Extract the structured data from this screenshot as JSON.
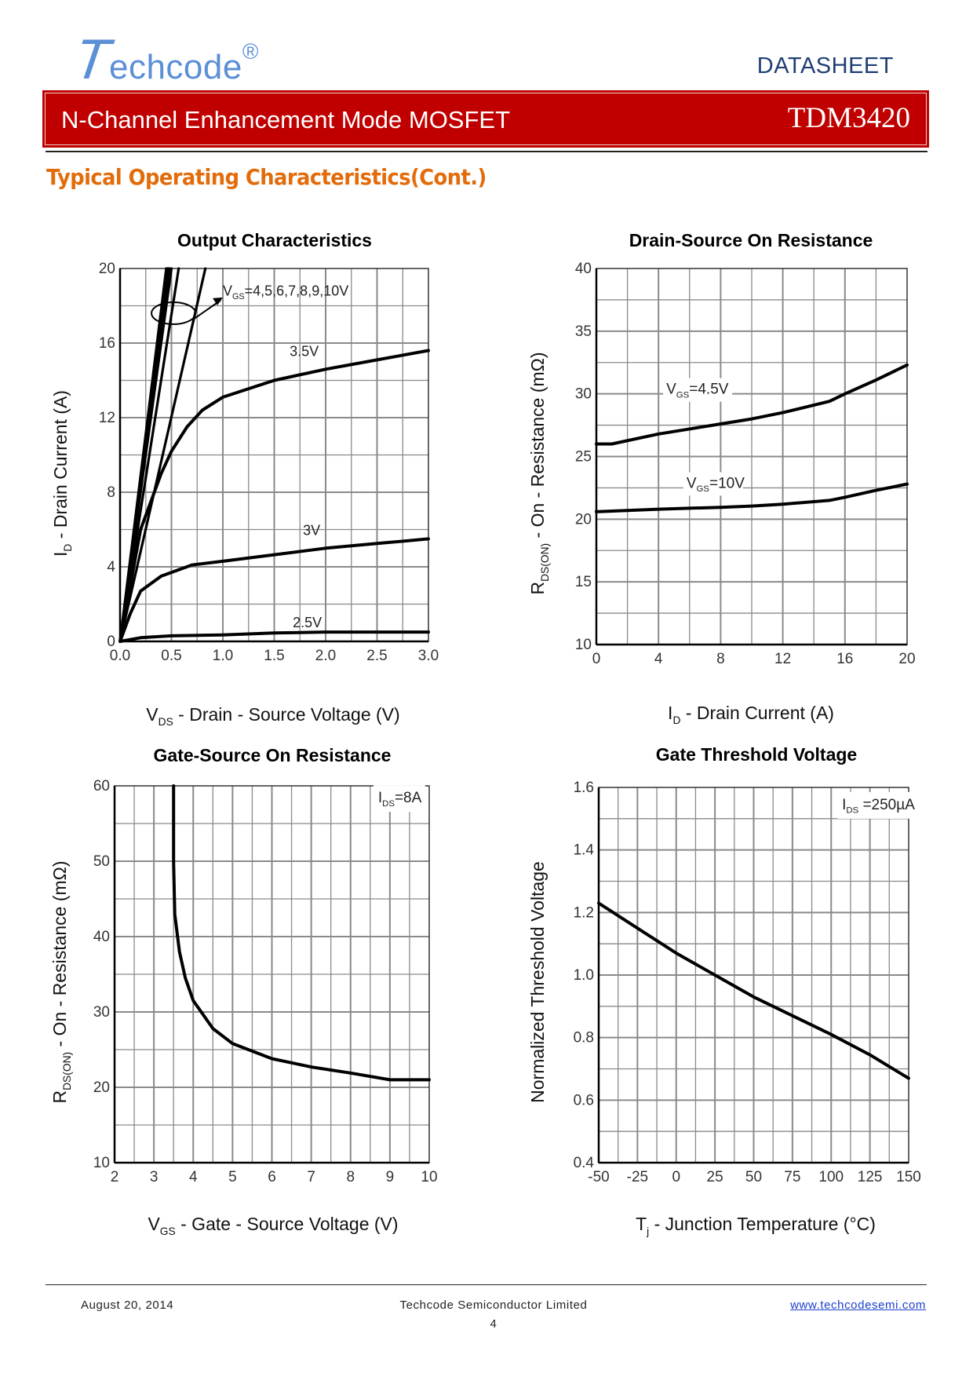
{
  "header": {
    "logo_initial": "T",
    "logo_rest": "echcode",
    "logo_mark": "®",
    "doc_type": "DATASHEET",
    "banner_title": "N-Channel Enhancement Mode MOSFET",
    "part_number": "TDM3420",
    "banner_color": "#c00000",
    "logo_color": "#5b8fd6"
  },
  "section_title": "Typical Operating Characteristics(Cont.)",
  "section_title_color": "#e36c0a",
  "chart_data": [
    {
      "type": "line",
      "title": "Output Characteristics",
      "xlabel": {
        "pre": "V",
        "sub": "DS",
        "post": " - Drain - Source Voltage (V)"
      },
      "ylabel": {
        "pre": "I",
        "sub": "D",
        "post": " - Drain Current (A)"
      },
      "xlim": [
        0,
        3
      ],
      "ylim": [
        0,
        20
      ],
      "xticks": [
        "0.0",
        "0.5",
        "1.0",
        "1.5",
        "2.0",
        "2.5",
        "3.0"
      ],
      "yticks": [
        "0",
        "4",
        "8",
        "12",
        "16",
        "20"
      ],
      "grid": true,
      "series": [
        {
          "points": [
            [
              0,
              0
            ],
            [
              0.83,
              20
            ]
          ]
        },
        {
          "points": [
            [
              0,
              0
            ],
            [
              0.57,
              20
            ]
          ]
        },
        {
          "points": [
            [
              0,
              0
            ],
            [
              0.5,
              20
            ]
          ]
        },
        {
          "points": [
            [
              0,
              0
            ],
            [
              0.48,
              20
            ]
          ]
        },
        {
          "points": [
            [
              0,
              0
            ],
            [
              0.47,
              20
            ]
          ]
        },
        {
          "points": [
            [
              0,
              0
            ],
            [
              0.46,
              20
            ]
          ]
        },
        {
          "points": [
            [
              0,
              0
            ],
            [
              0.45,
              20
            ]
          ]
        },
        {
          "name": "3.5V",
          "points": [
            [
              0,
              0
            ],
            [
              0.2,
              6
            ],
            [
              0.4,
              9
            ],
            [
              0.5,
              10.2
            ],
            [
              0.65,
              11.5
            ],
            [
              0.8,
              12.4
            ],
            [
              1,
              13.1
            ],
            [
              1.5,
              14
            ],
            [
              2,
              14.6
            ],
            [
              2.5,
              15.1
            ],
            [
              3,
              15.6
            ]
          ]
        },
        {
          "name": "3V",
          "points": [
            [
              0,
              0
            ],
            [
              0.1,
              1.5
            ],
            [
              0.2,
              2.7
            ],
            [
              0.4,
              3.5
            ],
            [
              0.7,
              4.1
            ],
            [
              1,
              4.3
            ],
            [
              1.5,
              4.65
            ],
            [
              2,
              5
            ],
            [
              2.5,
              5.25
            ],
            [
              3,
              5.5
            ]
          ]
        },
        {
          "name": "2.5V",
          "points": [
            [
              0,
              0
            ],
            [
              0.2,
              0.2
            ],
            [
              0.5,
              0.3
            ],
            [
              1,
              0.35
            ],
            [
              1.5,
              0.45
            ],
            [
              2,
              0.5
            ],
            [
              3,
              0.5
            ]
          ]
        }
      ],
      "annotations": [
        {
          "pre": "V",
          "sub": "GS",
          "post": "=4,5,6,7,8,9,10V"
        }
      ]
    },
    {
      "type": "line",
      "title": "Drain-Source On Resistance",
      "xlabel": {
        "pre": "I",
        "sub": "D",
        "post": " - Drain Current (A)"
      },
      "ylabel": {
        "pre": "R",
        "sub": "DS(ON)",
        "post": " - On - Resistance (mΩ)"
      },
      "xlim": [
        0,
        20
      ],
      "ylim": [
        10,
        40
      ],
      "xticks": [
        "0",
        "4",
        "8",
        "12",
        "16",
        "20"
      ],
      "yticks": [
        "10",
        "15",
        "20",
        "25",
        "30",
        "35",
        "40"
      ],
      "grid": true,
      "series": [
        {
          "name": {
            "pre": "V",
            "sub": "GS",
            "post": "=4.5V"
          },
          "points": [
            [
              0,
              26
            ],
            [
              1,
              26
            ],
            [
              4,
              26.8
            ],
            [
              8,
              27.6
            ],
            [
              10,
              28
            ],
            [
              12,
              28.5
            ],
            [
              15,
              29.4
            ],
            [
              16,
              30
            ],
            [
              18,
              31.1
            ],
            [
              20,
              32.3
            ]
          ]
        },
        {
          "name": {
            "pre": "V",
            "sub": "GS",
            "post": "=10V"
          },
          "points": [
            [
              0,
              20.6
            ],
            [
              4,
              20.8
            ],
            [
              8,
              20.95
            ],
            [
              10,
              21.05
            ],
            [
              12,
              21.2
            ],
            [
              15,
              21.5
            ],
            [
              16,
              21.75
            ],
            [
              18,
              22.3
            ],
            [
              20,
              22.8
            ]
          ]
        }
      ],
      "annotations": []
    },
    {
      "type": "line",
      "title": "Gate-Source On Resistance",
      "xlabel": {
        "pre": "V",
        "sub": "GS",
        "post": " - Gate - Source Voltage (V)"
      },
      "ylabel": {
        "pre": "R",
        "sub": "DS(ON)",
        "post": " - On - Resistance (mΩ)"
      },
      "xlim": [
        2,
        10
      ],
      "ylim": [
        10,
        60
      ],
      "xticks": [
        "2",
        "3",
        "4",
        "5",
        "6",
        "7",
        "8",
        "9",
        "10"
      ],
      "yticks": [
        "10",
        "20",
        "30",
        "40",
        "50",
        "60"
      ],
      "grid": true,
      "series": [
        {
          "points": [
            [
              3.5,
              60
            ],
            [
              3.5,
              50
            ],
            [
              3.53,
              43
            ],
            [
              3.65,
              38
            ],
            [
              3.8,
              34.5
            ],
            [
              4,
              31.5
            ],
            [
              4.5,
              27.8
            ],
            [
              5,
              25.8
            ],
            [
              5.5,
              24.8
            ],
            [
              6,
              23.8
            ],
            [
              7,
              22.7
            ],
            [
              8,
              21.9
            ],
            [
              9,
              21
            ],
            [
              10,
              21
            ]
          ]
        }
      ],
      "annotations": [
        {
          "pre": "I",
          "sub": "DS",
          "post": "=8A"
        }
      ]
    },
    {
      "type": "line",
      "title": "Gate Threshold Voltage",
      "xlabel": {
        "pre": "T",
        "sub": "j",
        "post": " - Junction Temperature (°C)"
      },
      "ylabel": {
        "pre": "Normalized Threshold Voltage",
        "sub": "",
        "post": ""
      },
      "xlim": [
        -50,
        150
      ],
      "ylim": [
        0.4,
        1.6
      ],
      "xticks": [
        "-50",
        "-25",
        "0",
        "25",
        "50",
        "75",
        "100",
        "125",
        "150"
      ],
      "yticks": [
        "0.4",
        "0.6",
        "0.8",
        "1.0",
        "1.2",
        "1.4",
        "1.6"
      ],
      "grid": true,
      "series": [
        {
          "points": [
            [
              -50,
              1.23
            ],
            [
              -25,
              1.15
            ],
            [
              0,
              1.07
            ],
            [
              25,
              1.0
            ],
            [
              50,
              0.93
            ],
            [
              75,
              0.87
            ],
            [
              100,
              0.81
            ],
            [
              125,
              0.745
            ],
            [
              150,
              0.67
            ]
          ]
        }
      ],
      "annotations": [
        {
          "pre": "I",
          "sub": "DS",
          "post": " =250µA"
        }
      ]
    }
  ],
  "footer": {
    "date": "August  20,  2014",
    "company": "Techcode  Semiconductor  Limited",
    "page": "4",
    "url": "www.techcodesemi.com"
  }
}
